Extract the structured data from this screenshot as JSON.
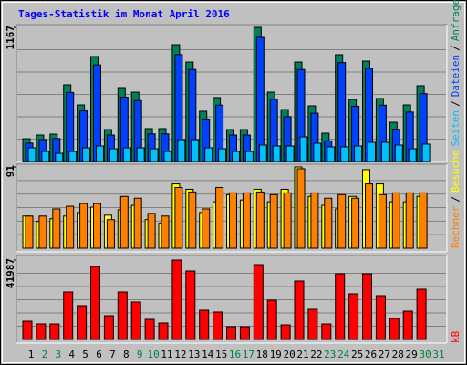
{
  "chart_data": {
    "type": "bar",
    "title": "Tages-Statistik im Monat April 2016",
    "categories": [
      "1",
      "2",
      "3",
      "4",
      "5",
      "6",
      "7",
      "8",
      "9",
      "10",
      "11",
      "12",
      "13",
      "14",
      "15",
      "16",
      "17",
      "18",
      "19",
      "20",
      "21",
      "22",
      "23",
      "24",
      "25",
      "26",
      "27",
      "28",
      "29",
      "30",
      "31"
    ],
    "category_colors": [
      "#000000",
      "#008040",
      "#008040",
      "#000000",
      "#000000",
      "#000000",
      "#000000",
      "#000000",
      "#008040",
      "#008040",
      "#000000",
      "#000000",
      "#000000",
      "#000000",
      "#000000",
      "#008040",
      "#008040",
      "#000000",
      "#000000",
      "#000000",
      "#000000",
      "#000000",
      "#008040",
      "#008040",
      "#000000",
      "#000000",
      "#000000",
      "#000000",
      "#000000",
      "#008040",
      "#008040"
    ],
    "legend_separator": "/",
    "panels": [
      {
        "ylim": [
          0,
          1167
        ],
        "yticks": [
          1167
        ],
        "series": [
          {
            "name": "Anfragen",
            "color": "#00805c",
            "values": [
              198,
              230,
              238,
              667,
              492,
              913,
              278,
              643,
              603,
              286,
              286,
              1016,
              865,
              437,
              556,
              278,
              278,
              1167,
              603,
              452,
              865,
              484,
              246,
              929,
              540,
              873,
              548,
              341,
              492,
              659
            ]
          },
          {
            "name": "Dateien",
            "color": "#0040ff",
            "values": [
              160,
              190,
              200,
              600,
              440,
              840,
              230,
              560,
              530,
              240,
              240,
              930,
              800,
              370,
              490,
              230,
              230,
              1080,
              540,
              390,
              800,
              420,
              180,
              860,
              480,
              810,
              490,
              280,
              430,
              590
            ]
          },
          {
            "name": "Seiten",
            "color": "#00c0ff",
            "values": [
              119,
              87,
              71,
              87,
              119,
              135,
              111,
              119,
              119,
              111,
              87,
              190,
              190,
              119,
              111,
              87,
              87,
              143,
              135,
              135,
              214,
              159,
              127,
              127,
              135,
              167,
              167,
              143,
              111,
              151
            ]
          }
        ]
      },
      {
        "ylim": [
          0,
          91
        ],
        "yticks": [
          91
        ],
        "series": [
          {
            "name": "Besuche",
            "color": "#ffff00",
            "values": [
              36,
              30,
              33,
              36,
              40,
              46,
              37,
              43,
              48,
              32,
              28,
              72,
              66,
              40,
              52,
              60,
              54,
              66,
              52,
              66,
              91,
              58,
              48,
              44,
              58,
              88,
              72,
              52,
              52,
              58
            ]
          },
          {
            "name": "Rechner",
            "color": "#ff8000",
            "values": [
              36,
              36,
              44,
              47,
              50,
              50,
              32,
              58,
              56,
              39,
              36,
              68,
              63,
              44,
              68,
              62,
              62,
              63,
              60,
              62,
              89,
              62,
              56,
              60,
              56,
              72,
              60,
              62,
              62,
              62
            ]
          }
        ]
      },
      {
        "ylim": [
          0,
          41987
        ],
        "yticks": [
          41987
        ],
        "series": [
          {
            "name": "kB",
            "color": "#ff0000",
            "values": [
              9650,
              8200,
              8200,
              25100,
              17860,
              38600,
              12550,
              25100,
              19790,
              10620,
              8690,
              41987,
              36200,
              15440,
              14480,
              6760,
              6760,
              39570,
              20750,
              7720,
              30890,
              15930,
              8200,
              34750,
              24130,
              34750,
              23170,
              11100,
              14960,
              26540
            ]
          }
        ]
      }
    ]
  }
}
